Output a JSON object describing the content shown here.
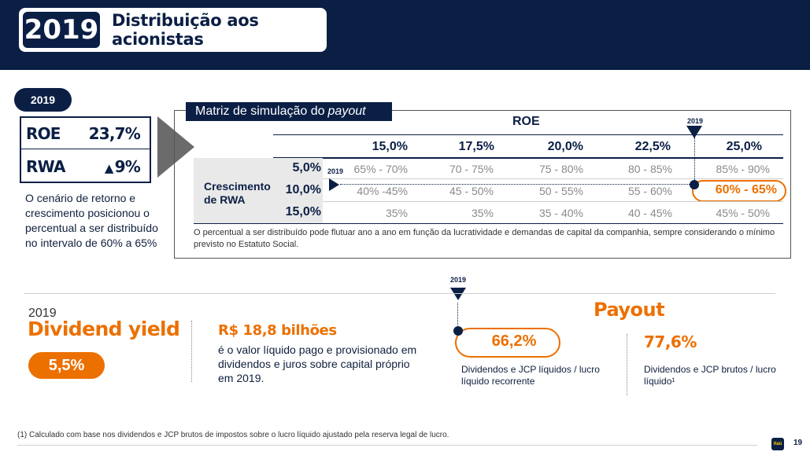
{
  "header": {
    "year": "2019",
    "title": "Distribuição aos acionistas"
  },
  "summary": {
    "badge": "2019",
    "roe_label": "ROE",
    "roe_value": "23,7%",
    "rwa_label": "RWA",
    "rwa_value": "9%",
    "rwa_arrow": "▲",
    "context": "O cenário de retorno e crescimento posicionou o percentual a ser distribuído no intervalo de 60% a 65%"
  },
  "matrix": {
    "label": "Matriz de simulação do",
    "label_em": "payout",
    "roe_header": "ROE",
    "marker_year": "2019",
    "columns": [
      "15,0%",
      "17,5%",
      "20,0%",
      "22,5%",
      "25,0%"
    ],
    "row_group_label_1": "Crescimento",
    "row_group_label_2": "de RWA",
    "rows": [
      {
        "label": "5,0%",
        "cells": [
          "65% - 70%",
          "70 - 75%",
          "75 - 80%",
          "80 - 85%",
          "85% - 90%"
        ]
      },
      {
        "label": "10,0%",
        "cells": [
          "40% -45%",
          "45 - 50%",
          "50 - 55%",
          "55 - 60%",
          "60% - 65%"
        ]
      },
      {
        "label": "15,0%",
        "cells": [
          "35%",
          "35%",
          "35 - 40%",
          "40 - 45%",
          "45% - 50%"
        ]
      }
    ],
    "note": "O percentual a ser distribuído pode flutuar ano a ano em função da lucratividade e demandas de capital da companhia, sempre considerando o mínimo previsto no Estatuto Social."
  },
  "bottom": {
    "timeline_year": "2019",
    "dy_year": "2019",
    "dy_title": "Dividend yield",
    "dy_value": "5,5%",
    "rs_title": "R$ 18,8 bilhões",
    "rs_text": "é o valor líquido pago e provisionado em dividendos e juros sobre capital próprio em 2019.",
    "payout_title": "Payout",
    "payout_value_1": "66,2%",
    "payout_desc_1": "Dividendos e JCP líquidos / lucro líquido recorrente",
    "payout_value_2": "77,6%",
    "payout_desc_2": "Dividendos e JCP brutos / lucro líquido¹"
  },
  "footer": {
    "footnote": "(1) Calculado com base nos dividendos e JCP brutos de impostos sobre o lucro líquido ajustado pela reserva legal de lucro.",
    "logo_text": "itaú",
    "page": "19"
  },
  "colors": {
    "navy": "#0b1f45",
    "orange": "#ec7000",
    "gray": "#8a8a8a"
  }
}
